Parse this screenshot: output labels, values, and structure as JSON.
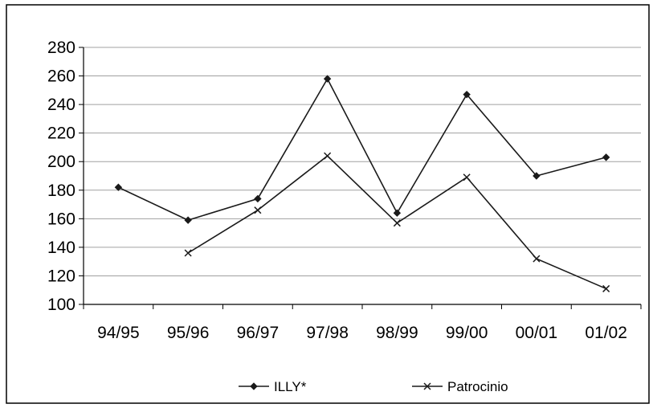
{
  "chart_data": {
    "type": "line",
    "categories": [
      "94/95",
      "95/96",
      "96/97",
      "97/98",
      "98/99",
      "99/00",
      "00/01",
      "01/02"
    ],
    "series": [
      {
        "name": "ILLY*",
        "marker": "diamond",
        "values": [
          182,
          159,
          174,
          258,
          164,
          247,
          190,
          203
        ]
      },
      {
        "name": "Patrocinio",
        "marker": "x",
        "values": [
          null,
          136,
          166,
          204,
          157,
          189,
          132,
          111
        ]
      }
    ],
    "ylim": [
      100,
      280
    ],
    "yticks": [
      100,
      120,
      140,
      160,
      180,
      200,
      220,
      240,
      260,
      280
    ],
    "grid": true,
    "legend_position": "bottom",
    "colors": {
      "line": "#1a1a1a",
      "grid": "#a0a0a0",
      "axis": "#000000"
    }
  }
}
